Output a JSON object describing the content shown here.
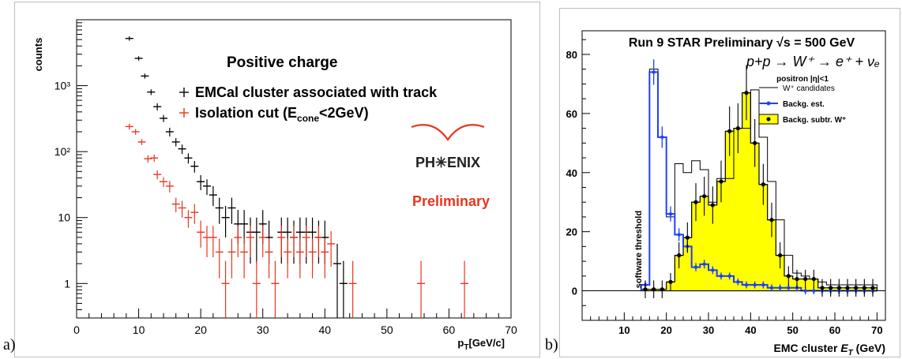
{
  "panel_labels": {
    "a": "a)",
    "b": "b)"
  },
  "chart_data": [
    {
      "type": "scatter",
      "xlabel": "p_T[GeV/c]",
      "ylabel": "counts",
      "yscale": "log",
      "xlim": [
        0,
        70
      ],
      "ylim": [
        0.3,
        10000
      ],
      "x_ticks": [
        "0",
        "10",
        "20",
        "30",
        "40",
        "50",
        "60",
        "70"
      ],
      "y_ticks": [
        {
          "label": "1",
          "value": 1
        },
        {
          "label": "10",
          "value": 10
        },
        {
          "label": "10²",
          "value": 100
        },
        {
          "label": "10³",
          "value": 1000
        }
      ],
      "annotations": {
        "title": "Positive charge",
        "logo": "PH✳ENIX",
        "preliminary": "Preliminary"
      },
      "colors": {
        "series0": "#000000",
        "series1": "#e8351f",
        "preliminary": "#e8351f",
        "logo_arc": "#e8351f"
      },
      "series": [
        {
          "name": "EMCal cluster associated with track",
          "points": [
            [
              8.5,
              5200,
              4800,
              5600
            ],
            [
              10,
              2600,
              2400,
              2800
            ],
            [
              11,
              1400,
              1280,
              1520
            ],
            [
              12,
              800,
              720,
              880
            ],
            [
              13,
              480,
              420,
              540
            ],
            [
              14,
              320,
              280,
              360
            ],
            [
              15,
              200,
              170,
              230
            ],
            [
              16,
              140,
              120,
              160
            ],
            [
              17,
              110,
              92,
              128
            ],
            [
              18,
              80,
              66,
              94
            ],
            [
              19,
              60,
              48,
              72
            ],
            [
              20,
              35,
              26,
              44
            ],
            [
              21,
              30,
              22,
              38
            ],
            [
              22,
              22,
              15,
              30
            ],
            [
              23,
              14,
              8,
              20
            ],
            [
              24,
              10,
              5,
              15
            ],
            [
              25,
              14,
              8,
              20
            ],
            [
              26,
              8,
              4,
              13
            ],
            [
              27,
              8,
              4,
              13
            ],
            [
              28,
              6,
              2,
              10
            ],
            [
              29,
              6,
              2,
              10
            ],
            [
              30,
              8,
              4,
              13
            ],
            [
              31,
              5,
              2,
              9
            ],
            [
              33,
              6,
              2,
              10
            ],
            [
              34,
              6,
              2,
              10
            ],
            [
              35,
              5,
              2,
              9
            ],
            [
              36,
              6,
              2,
              10
            ],
            [
              37,
              6,
              2,
              10
            ],
            [
              38,
              6,
              2,
              10
            ],
            [
              39,
              5,
              2,
              9
            ],
            [
              40,
              5,
              2,
              9
            ],
            [
              42,
              2,
              0.3,
              4
            ],
            [
              43,
              1,
              0.3,
              2.2
            ]
          ]
        },
        {
          "name": "Isolation cut (E_cone<2GeV)",
          "points": [
            [
              8.5,
              240,
              215,
              265
            ],
            [
              9.5,
              200,
              180,
              220
            ],
            [
              10.5,
              140,
              125,
              155
            ],
            [
              11.5,
              78,
              68,
              88
            ],
            [
              12.5,
              80,
              70,
              90
            ],
            [
              13,
              45,
              38,
              52
            ],
            [
              14,
              35,
              29,
              41
            ],
            [
              15,
              30,
              24,
              36
            ],
            [
              16,
              16,
              12,
              20
            ],
            [
              17,
              14,
              10,
              18
            ],
            [
              18,
              10,
              7,
              13
            ],
            [
              19,
              12,
              8,
              16
            ],
            [
              20,
              6,
              3.5,
              9
            ],
            [
              21,
              5,
              2.5,
              7.5
            ],
            [
              22,
              5,
              2.5,
              7.5
            ],
            [
              23,
              3,
              1.2,
              4.8
            ],
            [
              24,
              1,
              0.3,
              2.2
            ],
            [
              25,
              3,
              1.2,
              4.8
            ],
            [
              26,
              5,
              2.5,
              7.5
            ],
            [
              27,
              3,
              1.2,
              4.8
            ],
            [
              28,
              5,
              2.5,
              7.5
            ],
            [
              29,
              1,
              0.3,
              2.2
            ],
            [
              30,
              5,
              2.5,
              7.5
            ],
            [
              31,
              3,
              1.2,
              4.8
            ],
            [
              32,
              1,
              0.3,
              2.2
            ],
            [
              33,
              5,
              2.5,
              7.5
            ],
            [
              34,
              3,
              1.2,
              4.8
            ],
            [
              35,
              5,
              2.5,
              7.5
            ],
            [
              36,
              3,
              1.2,
              4.8
            ],
            [
              37,
              5,
              2.5,
              7.5
            ],
            [
              38,
              3,
              1.2,
              4.8
            ],
            [
              39,
              5,
              2.5,
              7.5
            ],
            [
              40,
              3,
              1.2,
              4.8
            ],
            [
              41,
              4,
              1.8,
              6.2
            ],
            [
              44.5,
              1,
              0.3,
              2.2
            ],
            [
              55.5,
              1,
              0.3,
              2.2
            ],
            [
              62.5,
              1,
              0.3,
              2.2
            ]
          ]
        }
      ]
    },
    {
      "type": "bar",
      "xlabel": "EMC cluster  E_T (GeV)",
      "xlim": [
        0,
        72
      ],
      "ylim": [
        -10,
        88
      ],
      "x_ticks": [
        "10",
        "20",
        "30",
        "40",
        "50",
        "60",
        "70"
      ],
      "y_ticks": [
        "0",
        "20",
        "40",
        "60",
        "80"
      ],
      "annotations": {
        "title": "Run 9 STAR Preliminary √s = 500 GeV",
        "reaction": "p+p → W⁺ → e⁺ + νₑ",
        "cut": "positron |η|<1",
        "threshold": "software threshold"
      },
      "colors": {
        "fill": "#ffff00",
        "blue": "#1f3fff",
        "black": "#000000"
      },
      "bin_width": 2,
      "bin_edges_start": 14,
      "series": [
        {
          "name": "W⁺ candidates",
          "values": [
            2,
            75,
            52,
            25,
            43,
            40,
            44,
            41,
            30,
            38,
            38,
            55,
            55,
            68,
            52,
            37,
            24,
            12,
            6,
            5,
            4,
            3,
            2,
            2,
            2,
            2,
            2,
            2
          ]
        },
        {
          "name": "Backg. est.",
          "values": [
            2,
            74,
            52,
            26,
            19,
            15,
            8,
            9,
            7,
            5,
            5,
            3,
            2,
            2,
            2,
            1,
            1,
            1,
            1,
            0,
            0,
            0,
            0,
            0,
            0,
            0,
            0,
            0
          ]
        },
        {
          "name": "Backg. subtr. W⁺",
          "points": [
            [
              15,
              0.5
            ],
            [
              17,
              0.5
            ],
            [
              19,
              0.5
            ],
            [
              21,
              3
            ],
            [
              23,
              12
            ],
            [
              25,
              18
            ],
            [
              27,
              30
            ],
            [
              29,
              32
            ],
            [
              31,
              29
            ],
            [
              33,
              37
            ],
            [
              35,
              54
            ],
            [
              37,
              55
            ],
            [
              39,
              67
            ],
            [
              41,
              50
            ],
            [
              43,
              36
            ],
            [
              45,
              24
            ],
            [
              47,
              12
            ],
            [
              49,
              5
            ],
            [
              51,
              4
            ],
            [
              53,
              4
            ],
            [
              55,
              4
            ],
            [
              57,
              1
            ],
            [
              59,
              1
            ],
            [
              61,
              1
            ],
            [
              63,
              1
            ],
            [
              65,
              1
            ],
            [
              67,
              1
            ],
            [
              69,
              1
            ]
          ]
        }
      ]
    }
  ]
}
